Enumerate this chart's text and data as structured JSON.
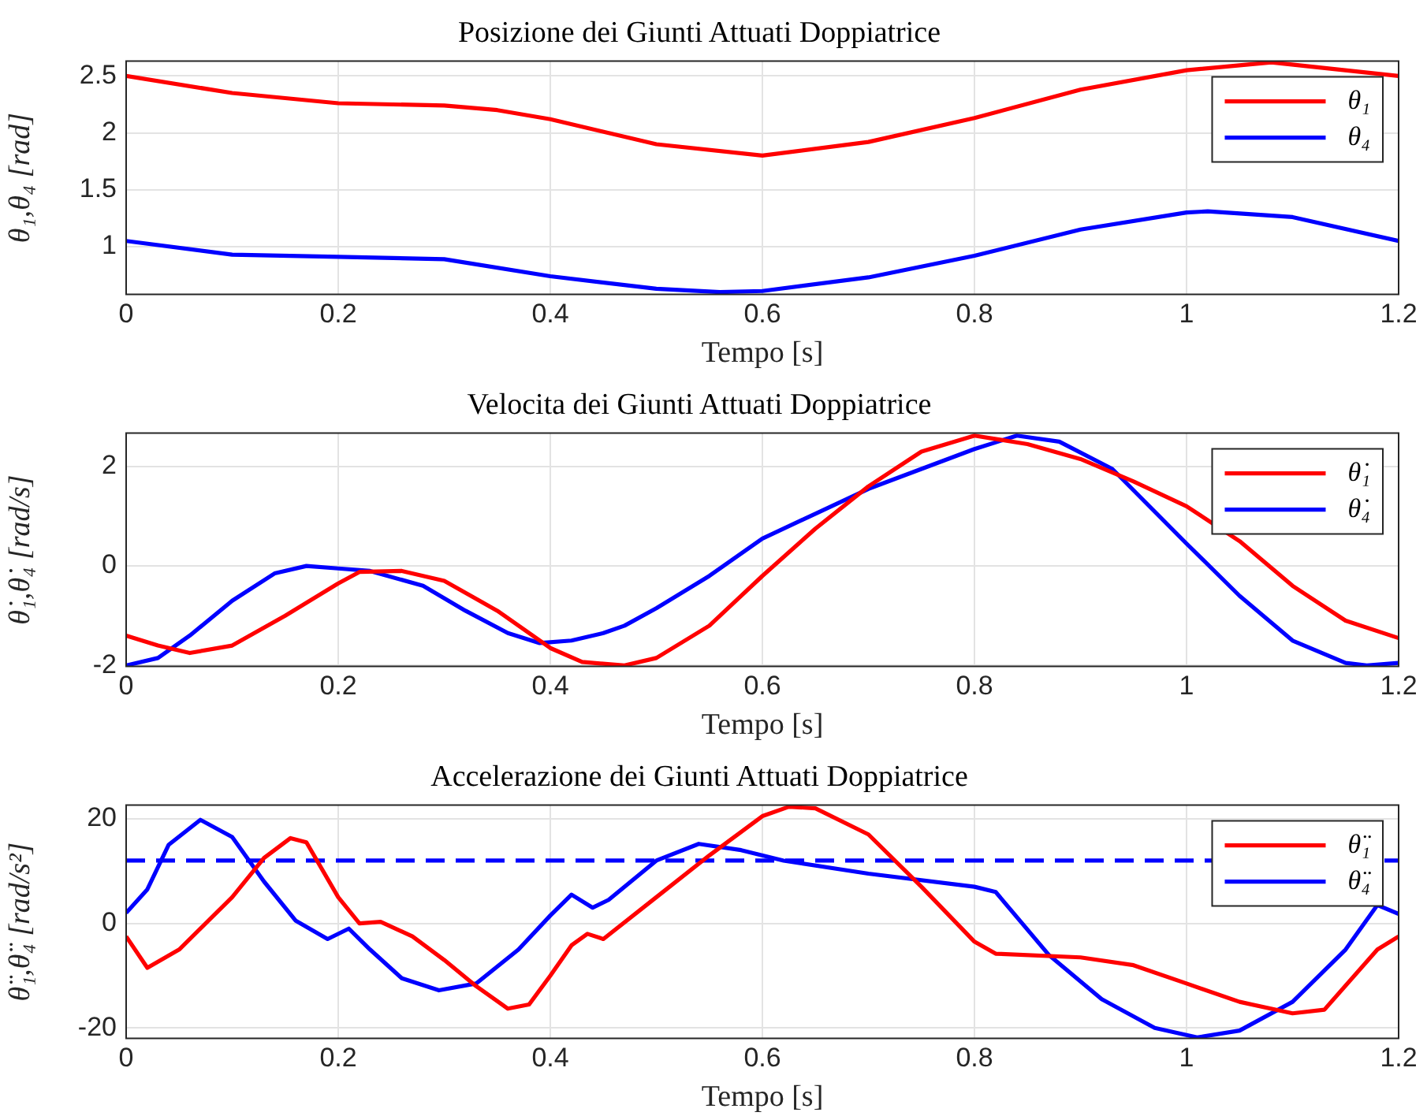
{
  "chart_data": [
    {
      "type": "line",
      "title": "Posizione dei Giunti Attuati Doppiatrice",
      "xlabel": "Tempo [s]",
      "ylabel": "θ₁,θ₄ [rad]",
      "xlim": [
        0,
        1.2
      ],
      "xticks": [
        0,
        0.2,
        0.4,
        0.6,
        0.8,
        1,
        1.2
      ],
      "ylim": [
        0.58,
        2.63
      ],
      "yticks": [
        1,
        1.5,
        2,
        2.5
      ],
      "grid": true,
      "legend": "top right",
      "marker": "none",
      "line_style": "solid",
      "series": [
        {
          "name": "θ₁",
          "color": "#ff0000",
          "x": [
            0,
            0.1,
            0.2,
            0.3,
            0.35,
            0.4,
            0.5,
            0.6,
            0.7,
            0.8,
            0.9,
            1.0,
            1.08,
            1.2
          ],
          "values": [
            2.5,
            2.35,
            2.26,
            2.24,
            2.2,
            2.12,
            1.9,
            1.8,
            1.92,
            2.13,
            2.38,
            2.55,
            2.62,
            2.5
          ]
        },
        {
          "name": "θ₄",
          "color": "#0000ff",
          "x": [
            0,
            0.1,
            0.2,
            0.3,
            0.4,
            0.5,
            0.56,
            0.6,
            0.7,
            0.8,
            0.9,
            1.0,
            1.02,
            1.1,
            1.2
          ],
          "values": [
            1.05,
            0.93,
            0.91,
            0.89,
            0.74,
            0.63,
            0.6,
            0.61,
            0.73,
            0.92,
            1.15,
            1.3,
            1.31,
            1.26,
            1.05
          ]
        }
      ]
    },
    {
      "type": "line",
      "title": "Velocita dei Giunti Attuati Doppiatrice",
      "xlabel": "Tempo [s]",
      "ylabel": "θ̇₁,θ̇₄ [rad/s]",
      "xlim": [
        0,
        1.2
      ],
      "xticks": [
        0,
        0.2,
        0.4,
        0.6,
        0.8,
        1,
        1.2
      ],
      "ylim": [
        -2.02,
        2.67
      ],
      "yticks": [
        -2,
        0,
        2
      ],
      "grid": true,
      "legend": "top right",
      "marker": "none",
      "line_style": "solid",
      "series": [
        {
          "name": "θ̇₁",
          "color": "#ff0000",
          "x": [
            0,
            0.03,
            0.06,
            0.1,
            0.15,
            0.2,
            0.22,
            0.26,
            0.3,
            0.35,
            0.4,
            0.43,
            0.47,
            0.5,
            0.55,
            0.6,
            0.65,
            0.7,
            0.75,
            0.8,
            0.85,
            0.9,
            0.95,
            1.0,
            1.05,
            1.1,
            1.15,
            1.2
          ],
          "values": [
            -1.4,
            -1.6,
            -1.75,
            -1.6,
            -1.0,
            -0.35,
            -0.12,
            -0.1,
            -0.3,
            -0.9,
            -1.65,
            -1.93,
            -2.0,
            -1.85,
            -1.2,
            -0.2,
            0.75,
            1.6,
            2.3,
            2.62,
            2.45,
            2.15,
            1.7,
            1.2,
            0.5,
            -0.4,
            -1.1,
            -1.45
          ]
        },
        {
          "name": "θ̇₄",
          "color": "#0000ff",
          "x": [
            0,
            0.03,
            0.06,
            0.1,
            0.14,
            0.17,
            0.2,
            0.23,
            0.28,
            0.32,
            0.36,
            0.39,
            0.42,
            0.45,
            0.47,
            0.5,
            0.55,
            0.6,
            0.65,
            0.7,
            0.75,
            0.8,
            0.84,
            0.88,
            0.93,
            1.0,
            1.05,
            1.1,
            1.15,
            1.17,
            1.2
          ],
          "values": [
            -2.0,
            -1.85,
            -1.4,
            -0.7,
            -0.15,
            0.0,
            -0.05,
            -0.1,
            -0.4,
            -0.9,
            -1.35,
            -1.55,
            -1.5,
            -1.35,
            -1.2,
            -0.85,
            -0.2,
            0.55,
            1.05,
            1.55,
            1.95,
            2.35,
            2.62,
            2.5,
            1.95,
            0.45,
            -0.6,
            -1.5,
            -1.95,
            -2.0,
            -1.95
          ]
        }
      ]
    },
    {
      "type": "line",
      "title": "Accelerazione dei Giunti Attuati Doppiatrice",
      "xlabel": "Tempo [s]",
      "ylabel": "θ̈₁,θ̈₄ [rad/s²]",
      "xlim": [
        0,
        1.2
      ],
      "xticks": [
        0,
        0.2,
        0.4,
        0.6,
        0.8,
        1,
        1.2
      ],
      "ylim": [
        -22,
        22.6
      ],
      "yticks": [
        -20,
        0,
        20
      ],
      "grid": true,
      "legend": "top right",
      "marker": "none",
      "line_style": "solid",
      "ref_lines": [
        {
          "axis": "y",
          "value": 12,
          "color": "#0000ff",
          "line_style": "dashed"
        }
      ],
      "series": [
        {
          "name": "θ̈₁",
          "color": "#ff0000",
          "x": [
            0,
            0.02,
            0.05,
            0.1,
            0.13,
            0.155,
            0.17,
            0.2,
            0.22,
            0.24,
            0.27,
            0.3,
            0.33,
            0.36,
            0.38,
            0.4,
            0.42,
            0.435,
            0.45,
            0.5,
            0.55,
            0.6,
            0.625,
            0.65,
            0.7,
            0.75,
            0.8,
            0.82,
            0.9,
            0.95,
            1.0,
            1.05,
            1.1,
            1.13,
            1.18,
            1.2
          ],
          "values": [
            -2.5,
            -8.5,
            -5,
            5,
            12.5,
            16.3,
            15.5,
            5,
            0,
            0.3,
            -2.5,
            -7,
            -12,
            -16.3,
            -15.5,
            -10,
            -4.2,
            -2,
            -3,
            5,
            13,
            20.5,
            22.3,
            22,
            17,
            7,
            -3.5,
            -5.8,
            -6.5,
            -8,
            -11.5,
            -15,
            -17.2,
            -16.5,
            -5,
            -2.5
          ]
        },
        {
          "name": "θ̈₄",
          "color": "#0000ff",
          "x": [
            0,
            0.02,
            0.04,
            0.07,
            0.1,
            0.13,
            0.16,
            0.19,
            0.21,
            0.23,
            0.26,
            0.295,
            0.33,
            0.37,
            0.4,
            0.42,
            0.44,
            0.455,
            0.5,
            0.54,
            0.58,
            0.62,
            0.7,
            0.8,
            0.82,
            0.87,
            0.92,
            0.97,
            1.01,
            1.05,
            1.1,
            1.15,
            1.18,
            1.2
          ],
          "values": [
            2,
            6.5,
            15,
            19.8,
            16.5,
            8,
            0.5,
            -3,
            -1,
            -5,
            -10.5,
            -12.8,
            -11.5,
            -5,
            1.5,
            5.5,
            3,
            4.5,
            12,
            15.2,
            14,
            12,
            9.5,
            7,
            6,
            -6,
            -14.5,
            -20,
            -21.8,
            -20.5,
            -15,
            -5,
            3.5,
            1.8
          ]
        }
      ]
    }
  ]
}
